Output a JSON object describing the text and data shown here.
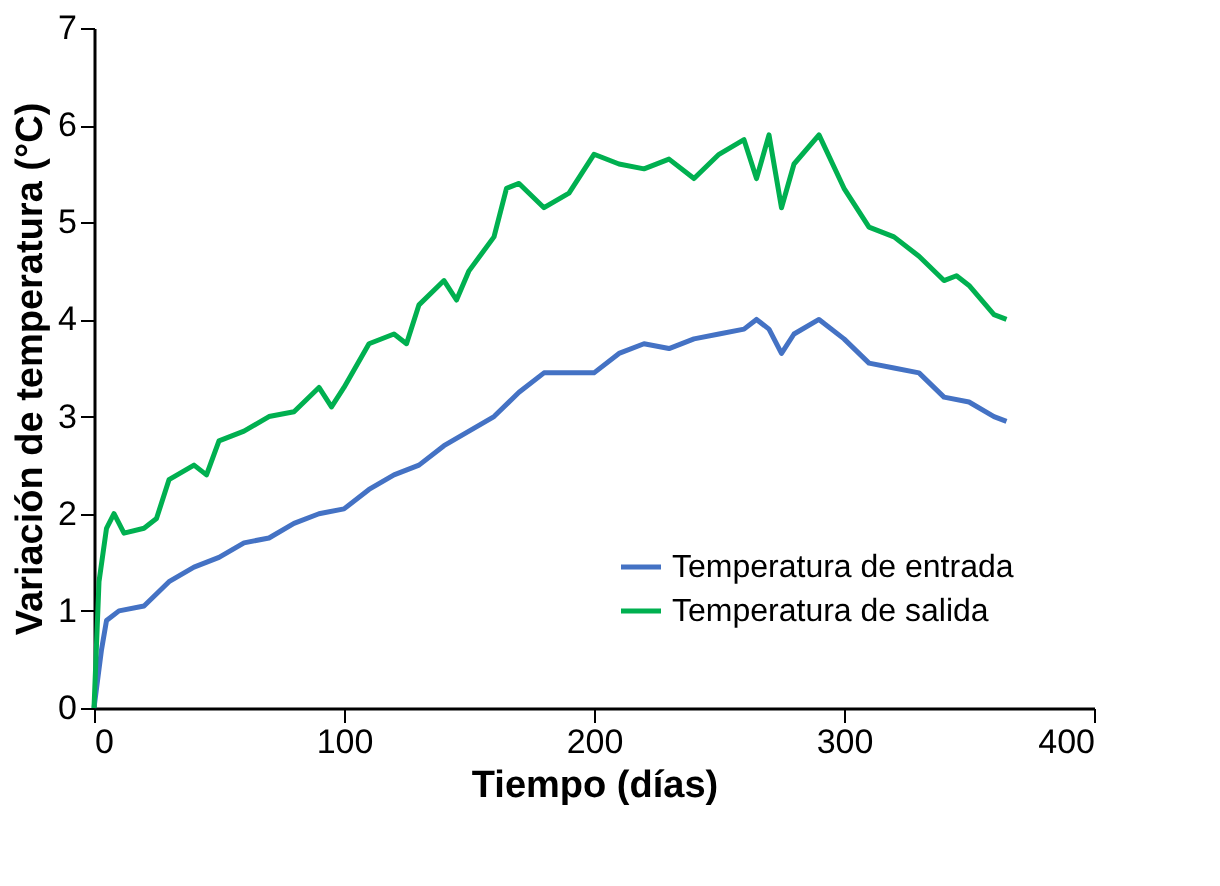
{
  "chart_data": {
    "type": "line",
    "xlabel": "Tiempo (días)",
    "ylabel": "Variación de temperatura (°C)",
    "xlim": [
      0,
      400
    ],
    "xticks": [
      0,
      100,
      200,
      300,
      400
    ],
    "ylim": [
      0,
      7
    ],
    "yticks": [
      0,
      1,
      2,
      3,
      4,
      5,
      6,
      7
    ],
    "grid": false,
    "legend": "bottom right",
    "marker": "none",
    "line_style": "solid",
    "series": [
      {
        "name": "Temperatura de entrada",
        "color": "#4472c4",
        "x": [
          0,
          3,
          5,
          10,
          20,
          30,
          40,
          50,
          60,
          70,
          80,
          90,
          100,
          110,
          120,
          130,
          140,
          150,
          160,
          170,
          180,
          190,
          200,
          210,
          220,
          230,
          240,
          250,
          260,
          265,
          270,
          275,
          280,
          290,
          300,
          310,
          320,
          330,
          340,
          350,
          360,
          365
        ],
        "values": [
          0,
          0.6,
          0.9,
          1.0,
          1.05,
          1.3,
          1.45,
          1.55,
          1.7,
          1.75,
          1.9,
          2.0,
          2.05,
          2.25,
          2.4,
          2.5,
          2.7,
          2.85,
          3.0,
          3.25,
          3.45,
          3.45,
          3.45,
          3.65,
          3.75,
          3.7,
          3.8,
          3.85,
          3.9,
          4.0,
          3.9,
          3.65,
          3.85,
          4.0,
          3.8,
          3.55,
          3.5,
          3.45,
          3.2,
          3.15,
          3.0,
          2.95
        ]
      },
      {
        "name": "Temperatura de salida",
        "color": "#00b050",
        "x": [
          0,
          2,
          5,
          8,
          12,
          20,
          25,
          30,
          40,
          45,
          50,
          60,
          70,
          80,
          90,
          95,
          100,
          110,
          120,
          125,
          130,
          140,
          145,
          150,
          160,
          165,
          170,
          180,
          190,
          200,
          210,
          220,
          230,
          240,
          250,
          260,
          265,
          270,
          275,
          280,
          290,
          300,
          310,
          320,
          330,
          340,
          345,
          350,
          360,
          365
        ],
        "values": [
          0,
          1.3,
          1.85,
          2.0,
          1.8,
          1.85,
          1.95,
          2.35,
          2.5,
          2.4,
          2.75,
          2.85,
          3.0,
          3.05,
          3.3,
          3.1,
          3.3,
          3.75,
          3.85,
          3.75,
          4.15,
          4.4,
          4.2,
          4.5,
          4.85,
          5.35,
          5.4,
          5.15,
          5.3,
          5.7,
          5.6,
          5.55,
          5.65,
          5.45,
          5.7,
          5.85,
          5.45,
          5.9,
          5.15,
          5.6,
          5.9,
          5.35,
          4.95,
          4.85,
          4.65,
          4.4,
          4.45,
          4.35,
          4.05,
          4.0
        ]
      }
    ]
  }
}
